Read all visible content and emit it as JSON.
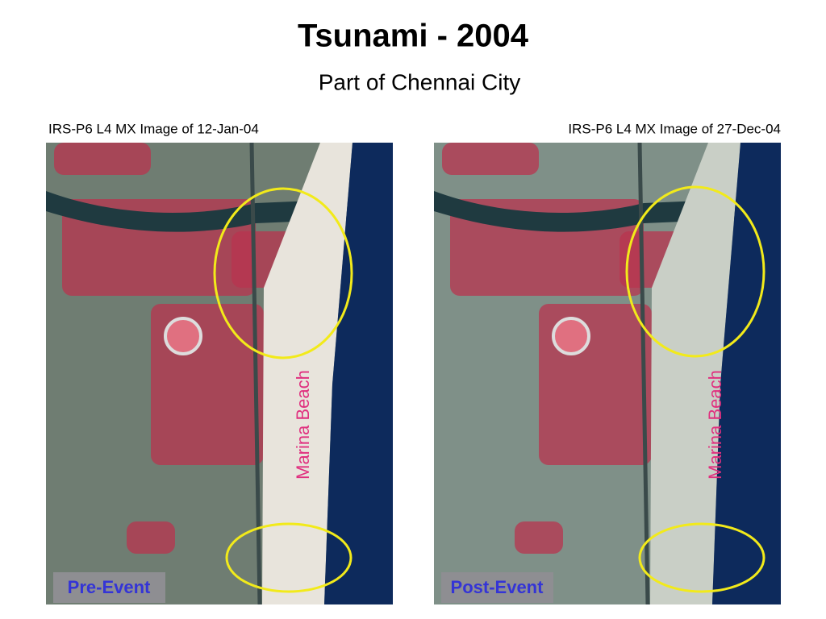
{
  "title": "Tsunami  - 2004",
  "subtitle": "Part of Chennai City",
  "panels": [
    {
      "caption": "IRS-P6 L4 MX Image of 12-Jan-04",
      "label": "Pre-Event",
      "annotation": "Marina Beach"
    },
    {
      "caption": "IRS-P6 L4 MX Image of 27-Dec-04",
      "label": "Post-Event",
      "annotation": "Marina Beach"
    }
  ]
}
